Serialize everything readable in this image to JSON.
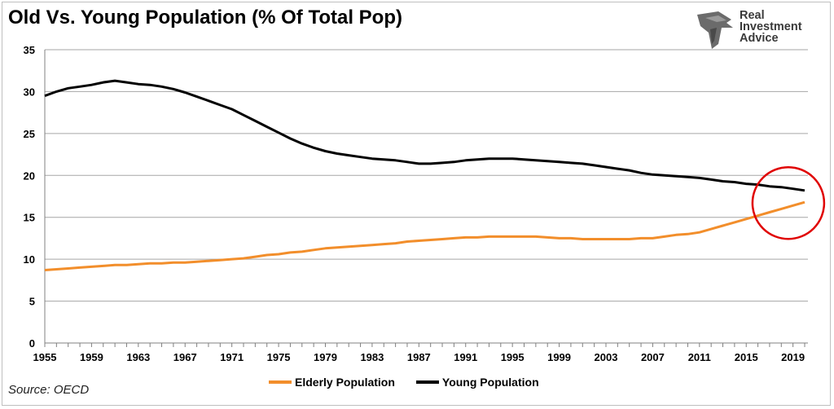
{
  "title": "Old Vs. Young Population (% Of Total Pop)",
  "logo": {
    "lines": [
      "Real",
      "Investment",
      "Advice"
    ],
    "icon": "eagle-head-icon"
  },
  "source": "Source: OECD",
  "colors": {
    "elderly": "#f28e2b",
    "young": "#000000",
    "highlight": "#e00000",
    "grid": "#a6a6a6"
  },
  "chart_data": {
    "type": "line",
    "title": "Old Vs. Young Population (% Of Total Pop)",
    "xlabel": "",
    "ylabel": "",
    "xlim": [
      1955,
      2020
    ],
    "ylim": [
      0,
      35
    ],
    "yticks": [
      0,
      5,
      10,
      15,
      20,
      25,
      30,
      35
    ],
    "xticks": [
      1955,
      1959,
      1963,
      1967,
      1971,
      1975,
      1979,
      1983,
      1987,
      1991,
      1995,
      1999,
      2003,
      2007,
      2011,
      2015,
      2019
    ],
    "grid": true,
    "legend": "bottom",
    "x": [
      1955,
      1956,
      1957,
      1958,
      1959,
      1960,
      1961,
      1962,
      1963,
      1964,
      1965,
      1966,
      1967,
      1968,
      1969,
      1970,
      1971,
      1972,
      1973,
      1974,
      1975,
      1976,
      1977,
      1978,
      1979,
      1980,
      1981,
      1982,
      1983,
      1984,
      1985,
      1986,
      1987,
      1988,
      1989,
      1990,
      1991,
      1992,
      1993,
      1994,
      1995,
      1996,
      1997,
      1998,
      1999,
      2000,
      2001,
      2002,
      2003,
      2004,
      2005,
      2006,
      2007,
      2008,
      2009,
      2010,
      2011,
      2012,
      2013,
      2014,
      2015,
      2016,
      2017,
      2018,
      2019,
      2020
    ],
    "series": [
      {
        "name": "Elderly Population",
        "color": "#f28e2b",
        "values": [
          8.7,
          8.8,
          8.9,
          9.0,
          9.1,
          9.2,
          9.3,
          9.3,
          9.4,
          9.5,
          9.5,
          9.6,
          9.6,
          9.7,
          9.8,
          9.9,
          10.0,
          10.1,
          10.3,
          10.5,
          10.6,
          10.8,
          10.9,
          11.1,
          11.3,
          11.4,
          11.5,
          11.6,
          11.7,
          11.8,
          11.9,
          12.1,
          12.2,
          12.3,
          12.4,
          12.5,
          12.6,
          12.6,
          12.7,
          12.7,
          12.7,
          12.7,
          12.7,
          12.6,
          12.5,
          12.5,
          12.4,
          12.4,
          12.4,
          12.4,
          12.4,
          12.5,
          12.5,
          12.7,
          12.9,
          13.0,
          13.2,
          13.6,
          14.0,
          14.4,
          14.8,
          15.2,
          15.6,
          16.0,
          16.4,
          16.8
        ]
      },
      {
        "name": "Young Population",
        "color": "#000000",
        "values": [
          29.5,
          30.0,
          30.4,
          30.6,
          30.8,
          31.1,
          31.3,
          31.1,
          30.9,
          30.8,
          30.6,
          30.3,
          29.9,
          29.4,
          28.9,
          28.4,
          27.9,
          27.2,
          26.5,
          25.8,
          25.1,
          24.4,
          23.8,
          23.3,
          22.9,
          22.6,
          22.4,
          22.2,
          22.0,
          21.9,
          21.8,
          21.6,
          21.4,
          21.4,
          21.5,
          21.6,
          21.8,
          21.9,
          22.0,
          22.0,
          22.0,
          21.9,
          21.8,
          21.7,
          21.6,
          21.5,
          21.4,
          21.2,
          21.0,
          20.8,
          20.6,
          20.3,
          20.1,
          20.0,
          19.9,
          19.8,
          19.7,
          19.5,
          19.3,
          19.2,
          19.0,
          18.9,
          18.7,
          18.6,
          18.4,
          18.2
        ]
      }
    ]
  }
}
